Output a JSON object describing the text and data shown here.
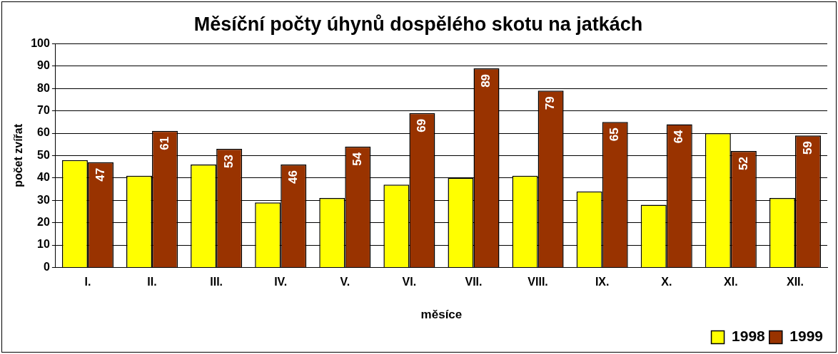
{
  "chart_data": {
    "type": "bar",
    "title": "Měsíční počty úhynů dospělého skotu na jatkách",
    "xlabel": "měsíce",
    "ylabel": "počet zvířat",
    "categories": [
      "I.",
      "II.",
      "III.",
      "IV.",
      "V.",
      "VI.",
      "VII.",
      "VIII.",
      "IX.",
      "X.",
      "XI.",
      "XII."
    ],
    "series": [
      {
        "name": "1998",
        "color": "#ffff00",
        "values": [
          48,
          41,
          46,
          29,
          31,
          37,
          40,
          41,
          34,
          28,
          60,
          31
        ]
      },
      {
        "name": "1999",
        "color": "#993300",
        "values": [
          47,
          61,
          53,
          46,
          54,
          69,
          89,
          79,
          65,
          64,
          52,
          59
        ],
        "value_labels": [
          "47",
          "61",
          "53",
          "46",
          "54",
          "69",
          "89",
          "79",
          "65",
          "64",
          "52",
          "59"
        ]
      }
    ],
    "ylim": [
      0,
      100
    ],
    "yticks": [
      0,
      10,
      20,
      30,
      40,
      50,
      60,
      70,
      80,
      90,
      100
    ],
    "grid": "y",
    "legend": "bottom right"
  }
}
